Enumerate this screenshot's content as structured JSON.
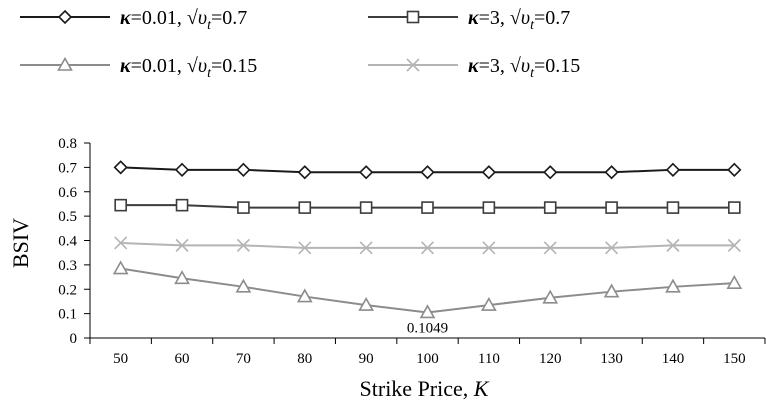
{
  "chart_data": {
    "type": "line",
    "title": "",
    "xlabel": "Strike Price, K",
    "xlabel_main": "Strike Price, ",
    "xlabel_var": "K",
    "ylabel": "BSIV",
    "categories": [
      "50",
      "60",
      "70",
      "80",
      "90",
      "100",
      "110",
      "120",
      "130",
      "140",
      "150"
    ],
    "ylim": [
      0,
      0.8
    ],
    "yticks": [
      "0",
      "0.1",
      "0.2",
      "0.3",
      "0.4",
      "0.5",
      "0.6",
      "0.7",
      "0.8"
    ],
    "grid": false,
    "legend_position": "top",
    "series": [
      {
        "name": "κ=0.01, √υt=0.7",
        "legend": {
          "kappa": "κ",
          "eq1": "=0.01, ",
          "root": "√",
          "sym": "υ",
          "sub": "t",
          "eq2": "=0.7"
        },
        "marker": "diamond",
        "color": "#1a1a1a",
        "values": [
          0.7,
          0.69,
          0.69,
          0.68,
          0.68,
          0.68,
          0.68,
          0.68,
          0.68,
          0.69,
          0.69
        ]
      },
      {
        "name": "κ=3, √υt=0.7",
        "legend": {
          "kappa": "κ",
          "eq1": "=3, ",
          "root": "√",
          "sym": "υ",
          "sub": "t",
          "eq2": "=0.7"
        },
        "marker": "square",
        "color": "#3c3c3c",
        "values": [
          0.545,
          0.545,
          0.535,
          0.535,
          0.535,
          0.535,
          0.535,
          0.535,
          0.535,
          0.535,
          0.535
        ]
      },
      {
        "name": "κ=0.01, √υt=0.15",
        "legend": {
          "kappa": "κ",
          "eq1": "=0.01, ",
          "root": "√",
          "sym": "υ",
          "sub": "t",
          "eq2": "=0.15"
        },
        "marker": "triangle",
        "color": "#8c8c8c",
        "values": [
          0.285,
          0.245,
          0.21,
          0.17,
          0.135,
          0.1049,
          0.135,
          0.165,
          0.19,
          0.21,
          0.225
        ]
      },
      {
        "name": "κ=3, √υt=0.15",
        "legend": {
          "kappa": "κ",
          "eq1": "=3, ",
          "root": "√",
          "sym": "υ",
          "sub": "t",
          "eq2": "=0.15"
        },
        "marker": "x",
        "color": "#b4b4b4",
        "values": [
          0.39,
          0.38,
          0.38,
          0.37,
          0.37,
          0.37,
          0.37,
          0.37,
          0.37,
          0.38,
          0.38
        ]
      }
    ],
    "annotations": [
      {
        "text": "0.1049",
        "series": 2,
        "index": 5
      }
    ]
  }
}
